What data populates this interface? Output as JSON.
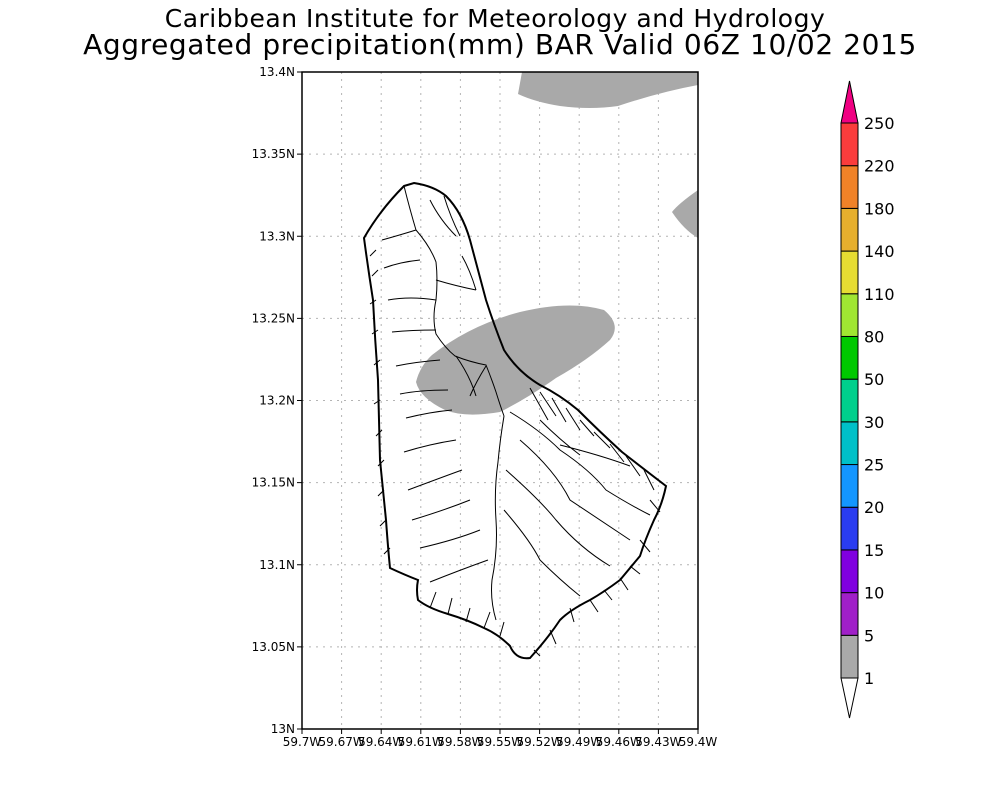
{
  "title": {
    "line1": "Caribbean Institute for Meteorology and Hydrology",
    "line2": "Aggregated precipitation(mm) BAR Valid 06Z 10/02 2015"
  },
  "map": {
    "region": "Barbados",
    "lat_ticks": [
      "13N",
      "13.05N",
      "13.1N",
      "13.15N",
      "13.2N",
      "13.25N",
      "13.3N",
      "13.35N",
      "13.4N"
    ],
    "lon_ticks": [
      "59.7W",
      "59.67W",
      "59.64W",
      "59.61W",
      "59.58W",
      "59.55W",
      "59.52W",
      "59.49W",
      "59.46W",
      "59.43W",
      "59.4W"
    ],
    "lat_range": [
      13.0,
      13.4
    ],
    "lon_range": [
      -59.7,
      -59.4
    ],
    "grid": true,
    "shaded_precip_class": "1-5 mm"
  },
  "colorbar": {
    "levels": [
      "1",
      "5",
      "10",
      "15",
      "20",
      "25",
      "30",
      "50",
      "80",
      "110",
      "140",
      "180",
      "220",
      "250"
    ],
    "colors": [
      "#a9a9a9",
      "#a01fc8",
      "#8000e0",
      "#2a3cf0",
      "#1496ff",
      "#00c0c8",
      "#00d08c",
      "#00c800",
      "#a0e632",
      "#e6dc32",
      "#e6af2d",
      "#f08228",
      "#fa3c3c",
      "#f00082"
    ],
    "below_color": "#ffffff"
  }
}
